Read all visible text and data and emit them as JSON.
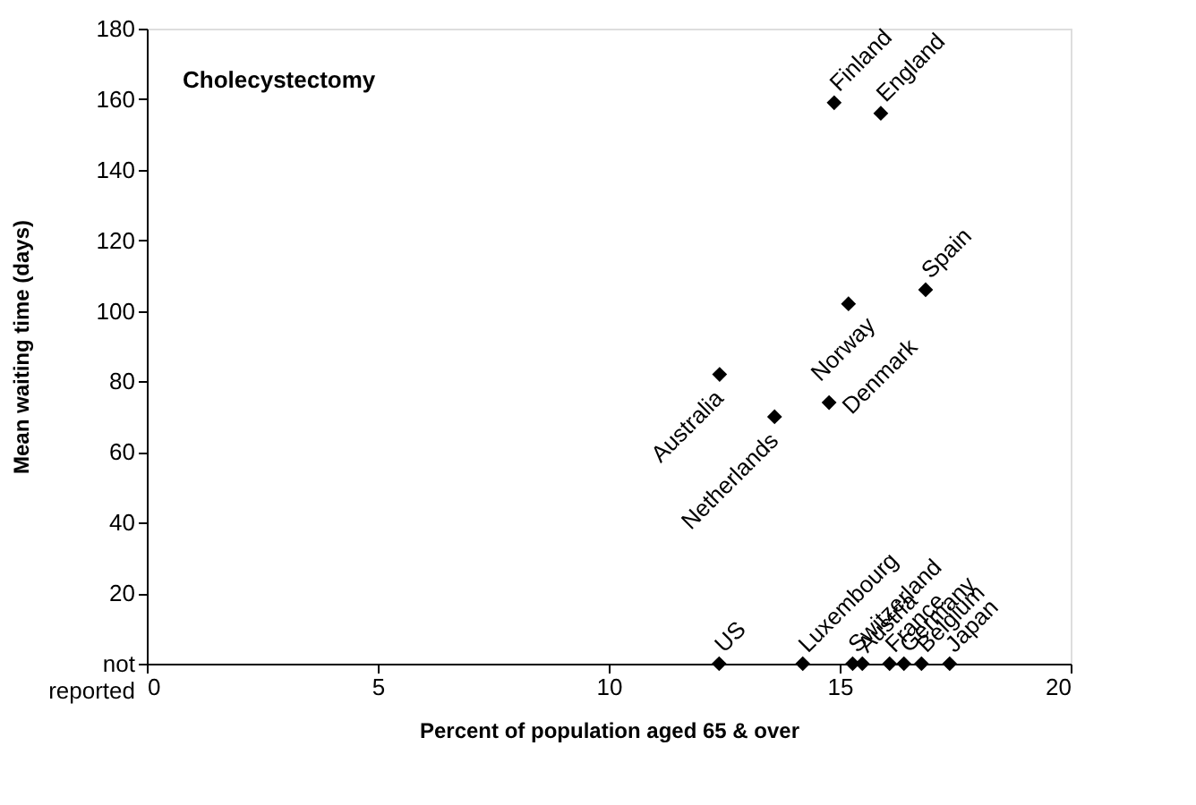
{
  "chart_data": {
    "type": "scatter",
    "title": "Cholecystectomy",
    "xlabel": "Percent of population aged 65 & over",
    "ylabel": "Mean waiting time (days)",
    "x": [
      14.88,
      15.89,
      16.86,
      15.19,
      12.4,
      13.59,
      14.77,
      12.39,
      14.2,
      15.28,
      15.49,
      16.08,
      16.39,
      16.77,
      17.38
    ],
    "series": [
      {
        "color": "#000000",
        "values": [
          159,
          156,
          106,
          102,
          82,
          70,
          74,
          0,
          0,
          0,
          0,
          0,
          0,
          0,
          0
        ]
      }
    ],
    "annotations": [
      {
        "text": "Finland",
        "x": 14.88,
        "y": 159
      },
      {
        "text": "England",
        "x": 15.89,
        "y": 156
      },
      {
        "text": "Spain",
        "x": 16.86,
        "y": 106
      },
      {
        "text": "Norway",
        "x": 15.19,
        "y": 102
      },
      {
        "text": "Australia",
        "x": 12.4,
        "y": 82
      },
      {
        "text": "Netherlands",
        "x": 13.59,
        "y": 70
      },
      {
        "text": "Denmark",
        "x": 14.77,
        "y": 74
      },
      {
        "text": "US",
        "x": 12.39,
        "y": 0
      },
      {
        "text": "Luxembourg",
        "x": 14.2,
        "y": 0
      },
      {
        "text": "Switzerland",
        "x": 15.28,
        "y": 0
      },
      {
        "text": "Austria",
        "x": 15.49,
        "y": 0
      },
      {
        "text": "France",
        "x": 16.08,
        "y": 0
      },
      {
        "text": "Germany",
        "x": 16.39,
        "y": 0
      },
      {
        "text": "Belgium",
        "x": 16.77,
        "y": 0
      },
      {
        "text": "Japan",
        "x": 17.38,
        "y": 0
      }
    ],
    "xlim": [
      0,
      20
    ],
    "xticks": [
      0,
      5,
      10,
      15,
      20
    ],
    "ylim": [
      0,
      180
    ],
    "yticks": [
      {
        "value": 0,
        "label": "not reported"
      },
      20,
      40,
      60,
      80,
      100,
      120,
      140,
      160,
      180
    ],
    "marker": "diamond",
    "grid": false
  }
}
